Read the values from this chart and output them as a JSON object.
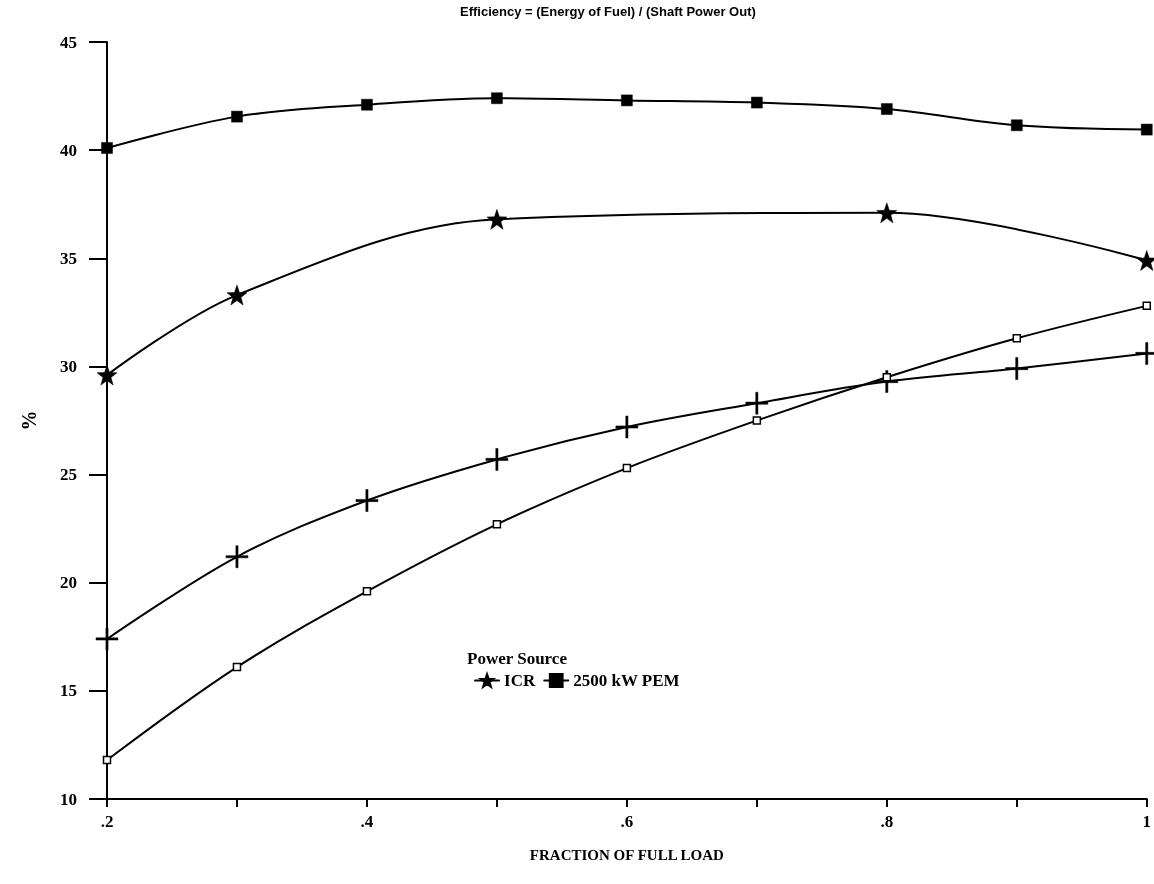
{
  "chart_data": {
    "type": "line",
    "title": "Efficiency = (Energy of Fuel) / (Shaft Power Out)",
    "xlabel": "FRACTION OF FULL LOAD",
    "ylabel": "%",
    "legend_title": "Power Source",
    "legend": "bottom",
    "grid": false,
    "xlim": [
      0.2,
      1
    ],
    "xticks": [
      {
        "value": 0.2,
        "label": ".2"
      },
      {
        "value": 0.3,
        "label": null
      },
      {
        "value": 0.4,
        "label": ".4"
      },
      {
        "value": 0.5,
        "label": null
      },
      {
        "value": 0.6,
        "label": ".6"
      },
      {
        "value": 0.7,
        "label": null
      },
      {
        "value": 0.8,
        "label": ".8"
      },
      {
        "value": 0.9,
        "label": null
      },
      1
    ],
    "ylim": [
      10,
      45
    ],
    "yticks": [
      10,
      15,
      20,
      25,
      30,
      35,
      40,
      45
    ],
    "series": [
      {
        "color": "#000000",
        "marker": "square",
        "x": [
          0.2,
          0.3,
          0.4,
          0.5,
          0.6,
          0.7,
          0.8,
          0.9,
          1
        ],
        "values": [
          11.8,
          16.1,
          19.6,
          22.7,
          25.3,
          27.5,
          29.5,
          31.3,
          32.8
        ]
      },
      {
        "color": "#000000",
        "marker": "cross",
        "x": [
          0.2,
          0.3,
          0.4,
          0.5,
          0.6,
          0.7,
          0.8,
          0.9,
          1
        ],
        "values": [
          17.4,
          21.2,
          23.8,
          25.7,
          27.2,
          28.3,
          29.3,
          29.9,
          30.6
        ]
      },
      {
        "name": "ICR",
        "color": "#000000",
        "marker": "star",
        "x": [
          0.2,
          0.3,
          0.5,
          0.8,
          1
        ],
        "values": [
          29.6,
          33.3,
          36.8,
          37.1,
          34.9
        ]
      },
      {
        "name": "2500 kW PEM",
        "color": "#000000",
        "marker": "square",
        "x": [
          0.2,
          0.3,
          0.4,
          0.5,
          0.6,
          0.7,
          0.8,
          0.9,
          1
        ],
        "values": [
          40.1,
          41.55,
          42.1,
          42.4,
          42.3,
          42.2,
          41.9,
          41.15,
          40.95
        ]
      }
    ]
  }
}
